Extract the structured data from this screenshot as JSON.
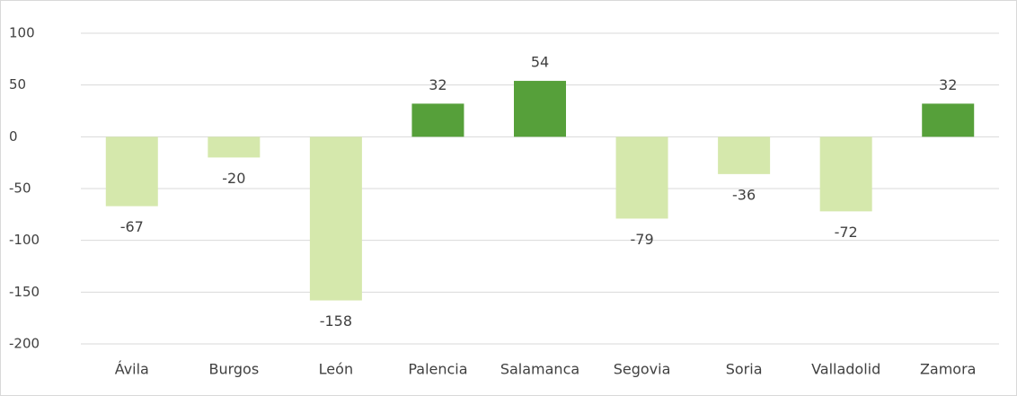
{
  "chart_data": {
    "type": "bar",
    "categories": [
      "Ávila",
      "Burgos",
      "León",
      "Palencia",
      "Salamanca",
      "Segovia",
      "Soria",
      "Valladolid",
      "Zamora"
    ],
    "values": [
      -67,
      -20,
      -158,
      32,
      54,
      -79,
      -36,
      -72,
      32
    ],
    "colors": [
      "#d5e8ac",
      "#d5e8ac",
      "#d5e8ac",
      "#56a03a",
      "#56a03a",
      "#d5e8ac",
      "#d5e8ac",
      "#d5e8ac",
      "#56a03a"
    ],
    "ylim": [
      -200,
      100
    ],
    "yticks": [
      -200,
      -150,
      -100,
      -50,
      0,
      50,
      100
    ],
    "grid": true
  }
}
